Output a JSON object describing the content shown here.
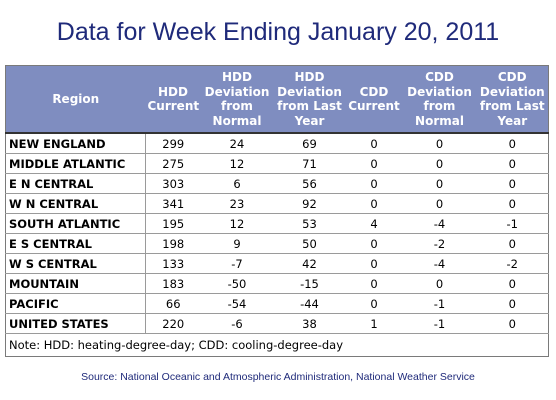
{
  "title": "Data for Week Ending January 20, 2011",
  "columns": [
    "Region",
    "HDD Current",
    "HDD Deviation from Normal",
    "HDD Deviation from Last Year",
    "CDD Current",
    "CDD Deviation from Normal",
    "CDD Deviation from Last Year"
  ],
  "rows": [
    [
      "NEW ENGLAND",
      "299",
      "24",
      "69",
      "0",
      "0",
      "0"
    ],
    [
      "MIDDLE ATLANTIC",
      "275",
      "12",
      "71",
      "0",
      "0",
      "0"
    ],
    [
      "E N CENTRAL",
      "303",
      "6",
      "56",
      "0",
      "0",
      "0"
    ],
    [
      "W N CENTRAL",
      "341",
      "23",
      "92",
      "0",
      "0",
      "0"
    ],
    [
      "SOUTH ATLANTIC",
      "195",
      "12",
      "53",
      "4",
      "-4",
      "-1"
    ],
    [
      "E S CENTRAL",
      "198",
      "9",
      "50",
      "0",
      "-2",
      "0"
    ],
    [
      "W S CENTRAL",
      "133",
      "-7",
      "42",
      "0",
      "-4",
      "-2"
    ],
    [
      "MOUNTAIN",
      "183",
      "-50",
      "-15",
      "0",
      "0",
      "0"
    ],
    [
      "PACIFIC",
      "66",
      "-54",
      "-44",
      "0",
      "-1",
      "0"
    ],
    [
      "UNITED STATES",
      "220",
      "-6",
      "38",
      "1",
      "-1",
      "0"
    ]
  ],
  "note": "Note: HDD: heating-degree-day; CDD: cooling-degree-day",
  "source": "Source:  National Oceanic and Atmospheric Administration, National Weather Service",
  "colors": {
    "title": "#1f2a7a",
    "header_bg": "#7f8dc0",
    "header_text": "#ffffff"
  }
}
